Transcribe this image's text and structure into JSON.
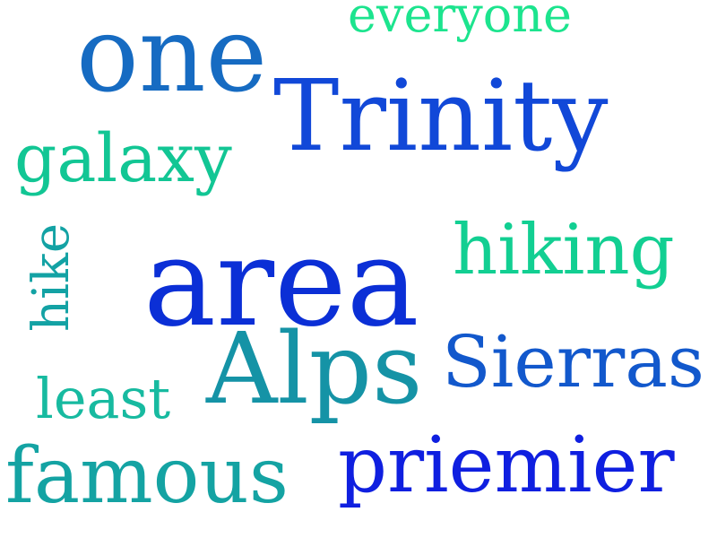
{
  "words": [
    {
      "text": "area",
      "color": "#0b2fd6"
    },
    {
      "text": "Trinity",
      "color": "#1148d8"
    },
    {
      "text": "Alps",
      "color": "#1593a6"
    },
    {
      "text": "one",
      "color": "#166bc2"
    },
    {
      "text": "priemier",
      "color": "#0f1fe0"
    },
    {
      "text": "Sierras",
      "color": "#1258cc"
    },
    {
      "text": "famous",
      "color": "#14a3a3"
    },
    {
      "text": "hiking",
      "color": "#12cf92"
    },
    {
      "text": "galaxy",
      "color": "#12c694"
    },
    {
      "text": "everyone",
      "color": "#1ce48e"
    },
    {
      "text": "least",
      "color": "#17baa0"
    },
    {
      "text": "hike",
      "color": "#13a2a4"
    }
  ]
}
